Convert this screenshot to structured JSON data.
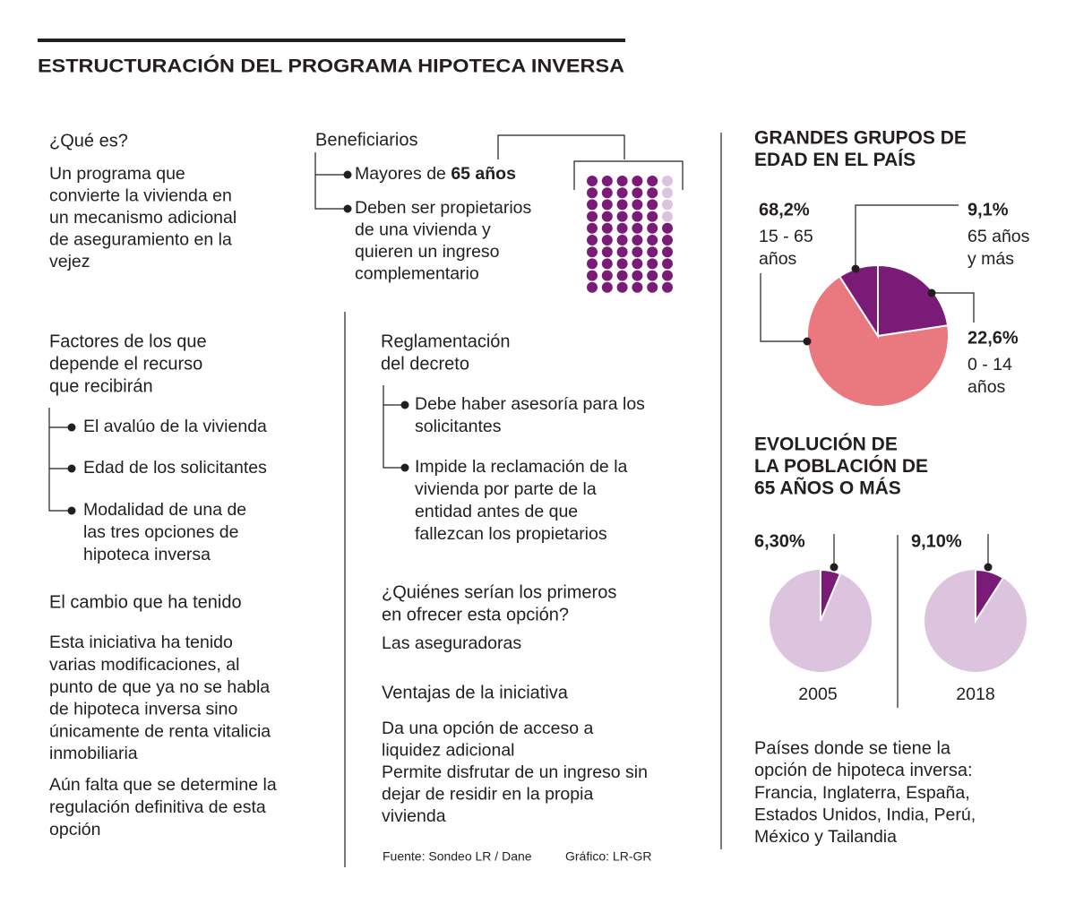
{
  "header": {
    "title": "ESTRUCTURACIÓN DEL PROGRAMA HIPOTECA INVERSA"
  },
  "que_es": {
    "heading": "¿Qué es?",
    "lines": [
      "Un programa que",
      "convierte la vivienda en",
      "un mecanismo adicional",
      "de aseguramiento en la",
      "vejez"
    ]
  },
  "beneficiarios": {
    "heading": "Beneficiarios",
    "first_item": {
      "text": "Mayores de",
      "bold": "65 años"
    },
    "second_item": [
      "Deben ser propietarios",
      "de una vivienda y",
      "quieren un ingreso",
      "complementario"
    ]
  },
  "factores": {
    "heading": [
      "Factores de los que",
      "depende el recurso",
      "que recibirán"
    ],
    "items": [
      [
        "El avalúo de la vivienda"
      ],
      [
        "Edad de los solicitantes"
      ],
      [
        "Modalidad de una de",
        "las tres opciones de",
        "hipoteca inversa"
      ]
    ]
  },
  "reglamentacion": {
    "heading": [
      "Reglamentación",
      "del decreto"
    ],
    "items": [
      [
        "Debe haber asesoría para los",
        "solicitantes"
      ],
      [
        "Impide la reclamación de la",
        "vivienda por parte de la",
        "entidad antes de que",
        "fallezcan los propietarios"
      ]
    ]
  },
  "cambio": {
    "heading": "El cambio que ha tenido",
    "paragraphs": [
      [
        "Esta iniciativa ha tenido",
        "varias modificaciones, al",
        "punto de que ya no se habla",
        "de hipoteca inversa sino",
        "únicamente de renta vitalicia",
        "inmobiliaria"
      ],
      [
        "Aún falta que se determine la",
        "regulación definitiva de esta",
        "opción"
      ]
    ]
  },
  "quienes": {
    "heading": [
      "¿Quiénes serían los primeros",
      "en ofrecer esta opción?"
    ],
    "lines": [
      "Las aseguradoras"
    ]
  },
  "ventajas": {
    "heading": "Ventajas de la iniciativa",
    "lines": [
      "Da una opción de acceso a",
      "liquidez adicional",
      "Permite disfrutar de un ingreso sin",
      "dejar de residir en la propia",
      "vivienda"
    ]
  },
  "footer": {
    "source": "Fuente: Sondeo LR / Dane",
    "credit": "Gráfico: LR-GR"
  },
  "paises": {
    "heading": [
      "Países donde se tiene la",
      "opción de hipoteca inversa:"
    ],
    "lines": [
      "Francia, Inglaterra, España,",
      "Estados Unidos, India, Perú,",
      "México y Tailandia"
    ]
  },
  "chart_data": [
    {
      "type": "pie",
      "title": [
        "GRANDES GRUPOS DE",
        "EDAD EN EL PAÍS"
      ],
      "categories": [
        [
          "0 - 14",
          "años"
        ],
        [
          "15 - 65",
          "años"
        ],
        [
          "65 años",
          "y más"
        ]
      ],
      "values": [
        22.6,
        68.2,
        9.1
      ],
      "value_labels": [
        "22,6%",
        "68,2%",
        "9,1%"
      ],
      "colors": [
        "#7b1b78",
        "#e9787f",
        "#7b1b78"
      ]
    },
    {
      "type": "pie",
      "title": [
        "EVOLUCIÓN DE",
        "LA POBLACIÓN DE",
        "65 AÑOS O MÁS"
      ],
      "categories": [
        "2005"
      ],
      "values": [
        6.3
      ],
      "value_labels": [
        "6,30%"
      ],
      "colors": [
        "#7b1b78"
      ],
      "background": "#dcc4de"
    },
    {
      "type": "pie",
      "categories": [
        "2018"
      ],
      "values": [
        9.1
      ],
      "value_labels": [
        "9,10%"
      ],
      "colors": [
        "#7b1b78"
      ],
      "background": "#dcc4de"
    }
  ]
}
